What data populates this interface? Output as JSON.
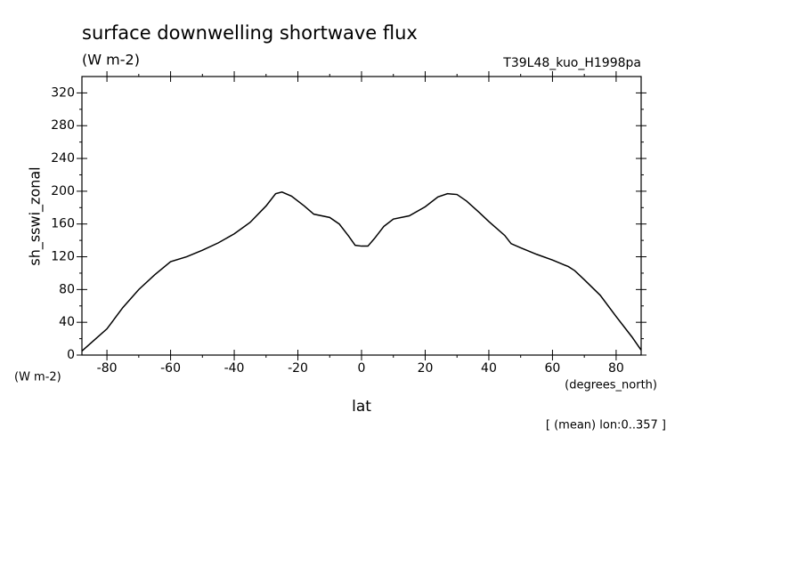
{
  "chart_data": {
    "type": "line",
    "title": "surface downwelling shortwave flux",
    "subtitle": "(W m-2)",
    "dataset": "T39L48_kuo_H1998pa",
    "y_label": "sh_sswi_zonal",
    "y_units": "(W m-2)",
    "x_units": "(degrees_north)",
    "x_label": "lat",
    "note": "[ (mean) lon:0..357 ]",
    "x": [
      -87.86,
      -80,
      -75,
      -70,
      -65,
      -60,
      -55,
      -50,
      -45,
      -40,
      -35,
      -30,
      -27,
      -25,
      -22,
      -18,
      -15,
      -10,
      -7,
      -4,
      -2,
      0,
      2,
      4,
      7,
      10,
      15,
      20,
      24,
      27,
      30,
      33,
      37,
      40,
      45,
      47,
      50,
      55,
      60,
      65,
      67,
      70,
      75,
      80,
      85,
      87.86
    ],
    "series": [
      {
        "name": "sh_sswi_zonal",
        "color": "#000000",
        "values": [
          5,
          32,
          58,
          80,
          98,
          114,
          120,
          128,
          137,
          148,
          162,
          182,
          197,
          199,
          194,
          182,
          172,
          168,
          160,
          145,
          134,
          133,
          133,
          142,
          157,
          166,
          170,
          181,
          193,
          197,
          196,
          188,
          174,
          163,
          146,
          136,
          131,
          123,
          116,
          108,
          103,
          92,
          73,
          47,
          22,
          6
        ]
      }
    ],
    "xlim": [
      -87.86,
      87.86
    ],
    "ylim": [
      0,
      340
    ],
    "xticks": [
      -80,
      -60,
      -40,
      -20,
      0,
      20,
      40,
      60,
      80
    ],
    "yticks": [
      0,
      40,
      80,
      120,
      160,
      200,
      240,
      280,
      320
    ]
  }
}
